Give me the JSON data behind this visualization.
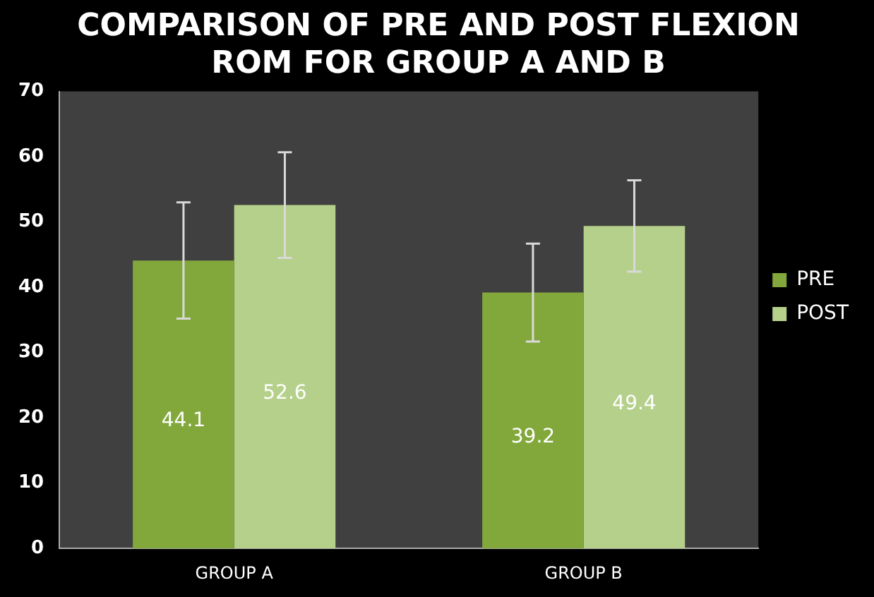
{
  "chart_data": {
    "type": "bar",
    "title": "COMPARISON OF PRE AND POST FLEXION ROM FOR GROUP A AND B",
    "categories": [
      "GROUP A",
      "GROUP B"
    ],
    "series": [
      {
        "name": "PRE",
        "color": "#82a83c",
        "values": [
          44.1,
          39.2
        ],
        "errors": [
          8.9,
          7.5
        ]
      },
      {
        "name": "POST",
        "color": "#b5d08a",
        "values": [
          52.6,
          49.4
        ],
        "errors": [
          8.1,
          7.0
        ]
      }
    ],
    "ylim": [
      0,
      70
    ],
    "yticks": [
      0,
      10,
      20,
      30,
      40,
      50,
      60,
      70
    ],
    "grid": false,
    "legend": "right",
    "data_labels": true
  }
}
